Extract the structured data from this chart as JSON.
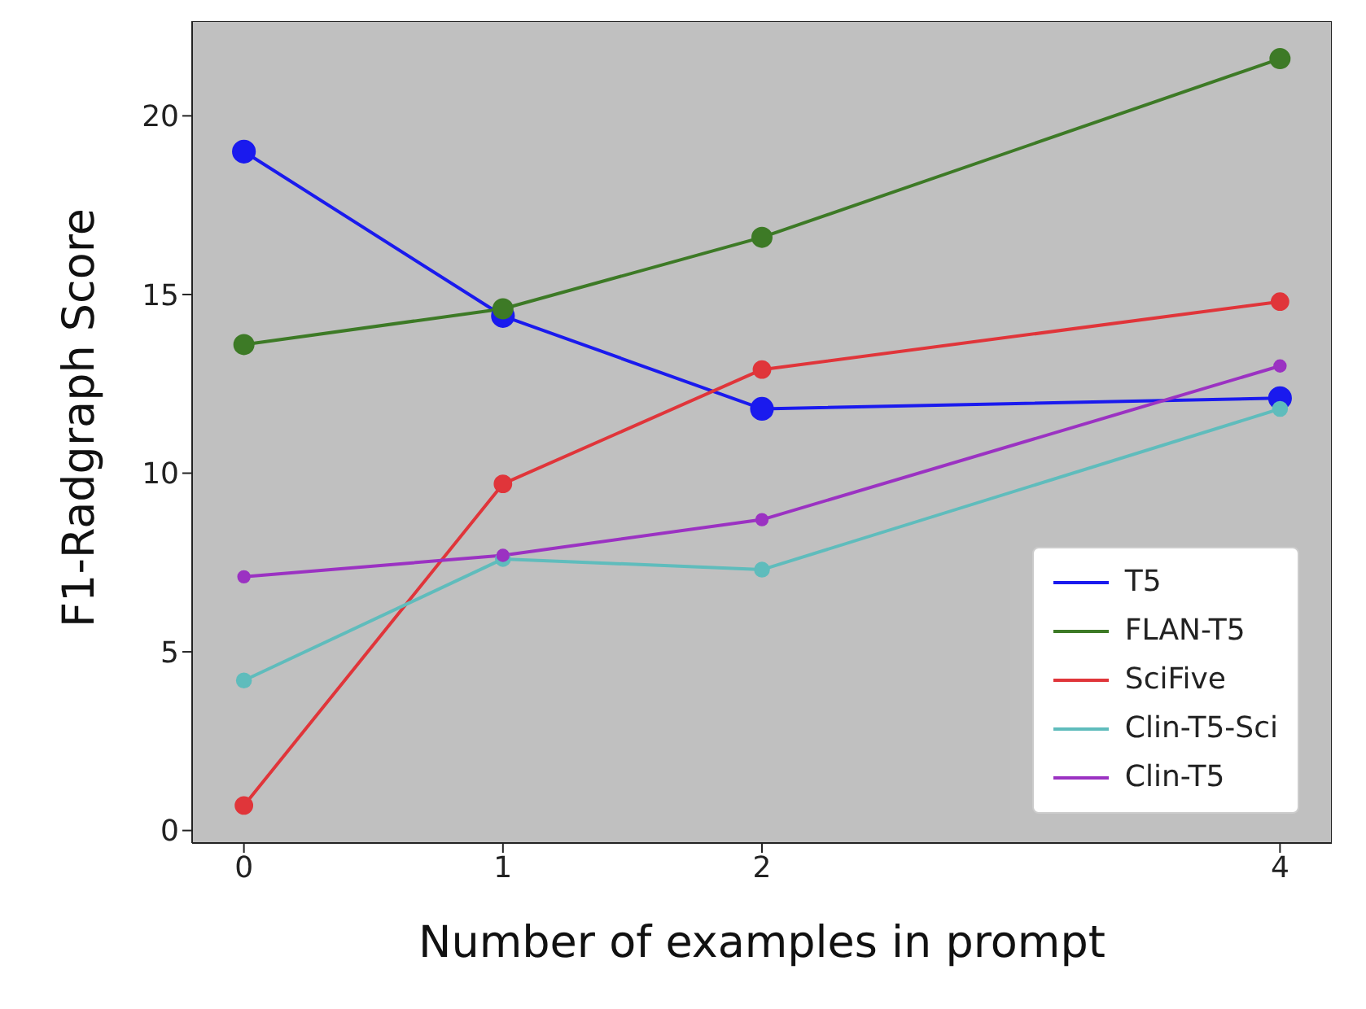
{
  "chart_data": {
    "type": "line",
    "xlabel": "Number of examples in prompt",
    "ylabel": "F1-Radgraph Score",
    "x": [
      0,
      1,
      2,
      4
    ],
    "series": [
      {
        "name": "T5",
        "color": "#1a1aee",
        "values": [
          19.0,
          14.4,
          11.8,
          12.1
        ]
      },
      {
        "name": "FLAN-T5",
        "color": "#3d7a26",
        "values": [
          13.6,
          14.6,
          16.6,
          21.6
        ]
      },
      {
        "name": "SciFive",
        "color": "#e0353a",
        "values": [
          0.7,
          9.7,
          12.9,
          14.8
        ]
      },
      {
        "name": "Clin-T5-Sci",
        "color": "#5fbcbc",
        "values": [
          4.2,
          7.6,
          7.3,
          11.8
        ]
      },
      {
        "name": "Clin-T5",
        "color": "#9b32c2",
        "values": [
          7.1,
          7.7,
          8.7,
          13.0
        ]
      }
    ],
    "xlim": [
      -0.2,
      4.2
    ],
    "ylim": [
      -0.35,
      22.65
    ],
    "xticks": [
      0,
      1,
      2,
      4
    ],
    "yticks": [
      0,
      5,
      10,
      15,
      20
    ],
    "legend": "bottom right",
    "marker": "circle",
    "line_style": "solid"
  }
}
